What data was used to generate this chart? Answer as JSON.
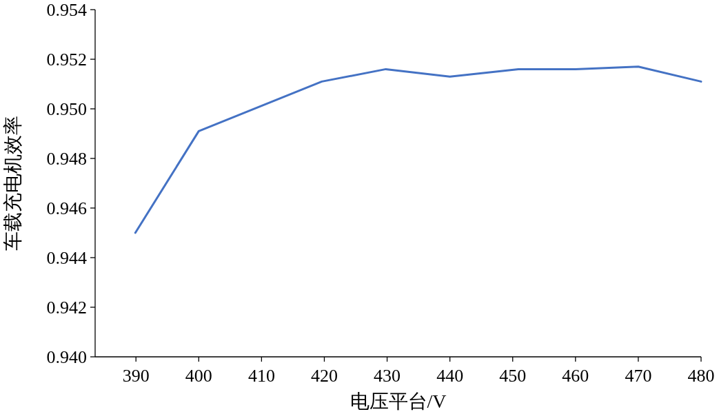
{
  "chart_data": {
    "type": "line",
    "xlabel": "电压平台/V",
    "ylabel": "车载充电机效率",
    "x": [
      389.9,
      400,
      419.6,
      429.8,
      440,
      450.9,
      460,
      470,
      480
    ],
    "series": [
      {
        "color": "#4472c4",
        "values": [
          0.945,
          0.9491,
          0.9511,
          0.9516,
          0.9513,
          0.9516,
          0.9516,
          0.9517,
          0.9511
        ]
      }
    ],
    "xlim": [
      383.5,
      480
    ],
    "xticks": [
      390,
      400,
      410,
      420,
      430,
      440,
      450,
      460,
      470,
      480
    ],
    "ylim": [
      0.94,
      0.954
    ],
    "yticks": [
      {
        "value": 0.94,
        "label": "0.940"
      },
      {
        "value": 0.942,
        "label": "0.942"
      },
      {
        "value": 0.944,
        "label": "0.944"
      },
      {
        "value": 0.946,
        "label": "0.946"
      },
      {
        "value": 0.948,
        "label": "0.948"
      },
      {
        "value": 0.95,
        "label": "0.950"
      },
      {
        "value": 0.952,
        "label": "0.952"
      },
      {
        "value": 0.954,
        "label": "0.954"
      }
    ],
    "grid": false,
    "marker": "none",
    "line_style": "solid"
  }
}
